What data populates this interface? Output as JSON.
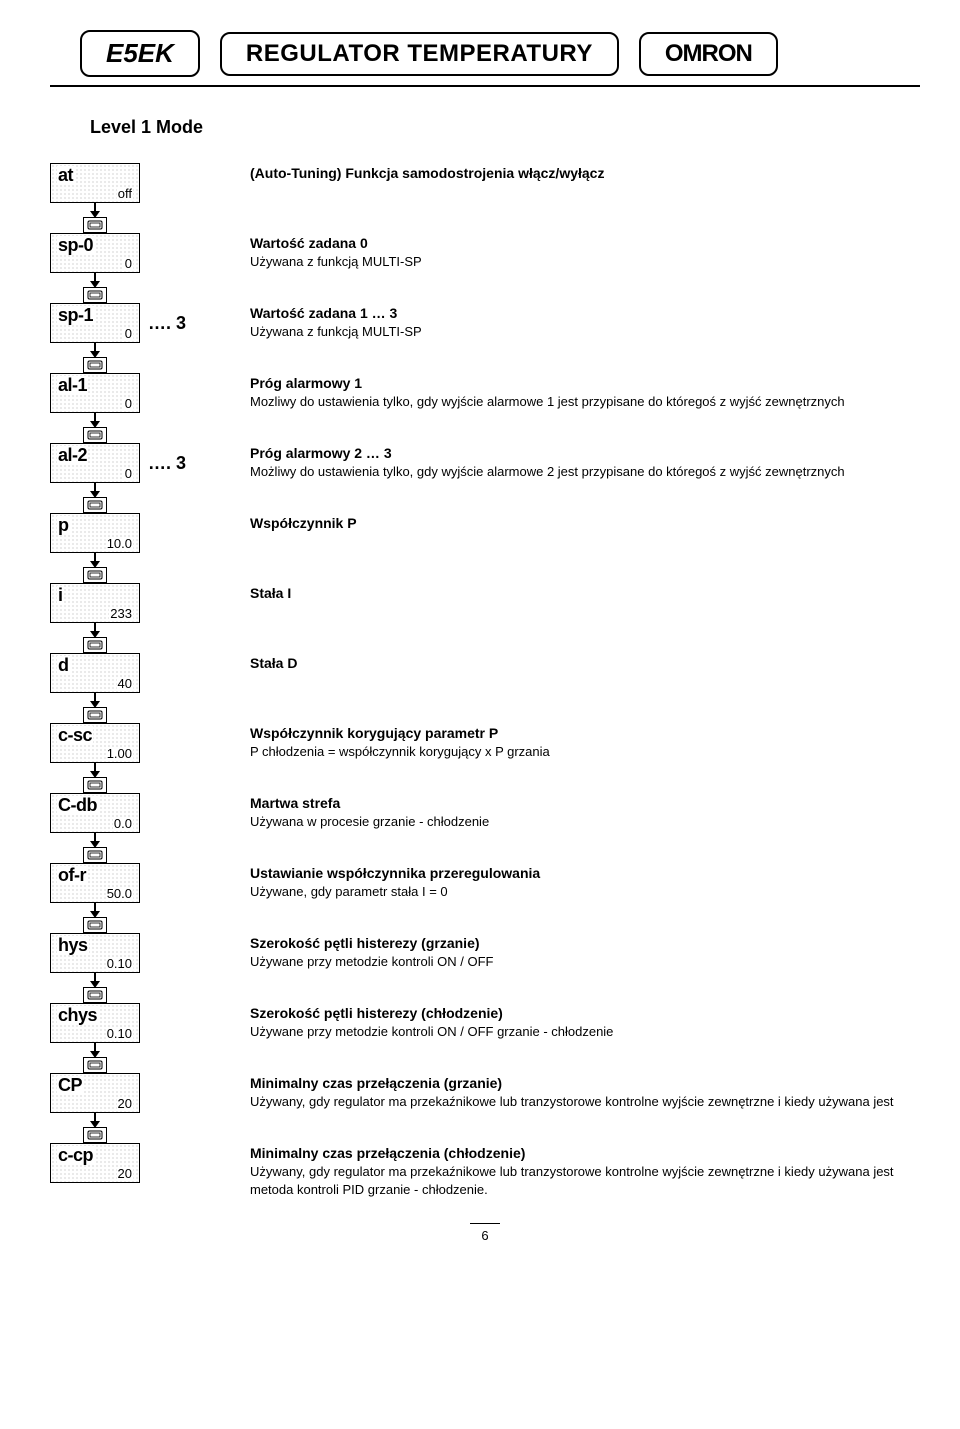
{
  "header": {
    "model": "E5EK",
    "title": "REGULATOR TEMPERATURY",
    "brand": "OMRON"
  },
  "level_title": "Level 1 Mode",
  "page_number": "6",
  "params": [
    {
      "label": "at",
      "value": "off",
      "suffix": "",
      "title": "(Auto-Tuning) Funkcja samodostrojenia włącz/wyłącz",
      "sub": ""
    },
    {
      "label": "sp-0",
      "value": "0",
      "suffix": "",
      "title": "Wartość zadana 0",
      "sub": "Używana z funkcją MULTI-SP"
    },
    {
      "label": "sp-1",
      "value": "0",
      "suffix": "…. 3",
      "title": "Wartość zadana 1 … 3",
      "sub": "Używana z funkcją MULTI-SP"
    },
    {
      "label": "al-1",
      "value": "0",
      "suffix": "",
      "title": "Próg alarmowy 1",
      "sub": "Mozliwy do ustawienia tylko, gdy wyjście alarmowe 1 jest przypisane do któregoś z wyjść zewnętrznych"
    },
    {
      "label": "al-2",
      "value": "0",
      "suffix": "…. 3",
      "title": "Próg alarmowy 2 … 3",
      "sub": "Możliwy do ustawienia tylko, gdy wyjście alarmowe 2 jest przypisane do któregoś z wyjść zewnętrznych"
    },
    {
      "label": "p",
      "value": "10.0",
      "suffix": "",
      "title": "Współczynnik P",
      "sub": ""
    },
    {
      "label": "i",
      "value": "233",
      "suffix": "",
      "title": "Stała I",
      "sub": ""
    },
    {
      "label": "d",
      "value": "40",
      "suffix": "",
      "title": "Stała D",
      "sub": ""
    },
    {
      "label": "c-sc",
      "value": "1.00",
      "suffix": "",
      "title": "Współczynnik korygujący parametr P",
      "sub": "P chłodzenia = współczynnik korygujący x P grzania"
    },
    {
      "label": "C-db",
      "value": "0.0",
      "suffix": "",
      "title": "Martwa strefa",
      "sub": "Używana w procesie grzanie - chłodzenie"
    },
    {
      "label": "of-r",
      "value": "50.0",
      "suffix": "",
      "title": "Ustawianie współczynnika przeregulowania",
      "sub": "Używane, gdy parametr stała I = 0"
    },
    {
      "label": "hys",
      "value": "0.10",
      "suffix": "",
      "title": "Szerokość pętli histerezy (grzanie)",
      "sub": "Używane przy metodzie kontroli ON / OFF"
    },
    {
      "label": "chys",
      "value": "0.10",
      "suffix": "",
      "title": "Szerokość pętli histerezy (chłodzenie)",
      "sub": "Używane przy metodzie kontroli ON / OFF grzanie - chłodzenie"
    },
    {
      "label": "CP",
      "value": "20",
      "suffix": "",
      "title": "Minimalny czas przełączenia (grzanie)",
      "sub": "Używany, gdy regulator ma przekaźnikowe lub tranzystorowe kontrolne wyjście zewnętrzne i kiedy używana jest"
    },
    {
      "label": "c-cp",
      "value": "20",
      "suffix": "",
      "title": "Minimalny czas przełączenia (chłodzenie)",
      "sub": "Używany, gdy regulator ma przekaźnikowe lub tranzystorowe kontrolne wyjście zewnętrzne i kiedy używana jest metoda kontroli PID grzanie - chłodzenie."
    }
  ]
}
